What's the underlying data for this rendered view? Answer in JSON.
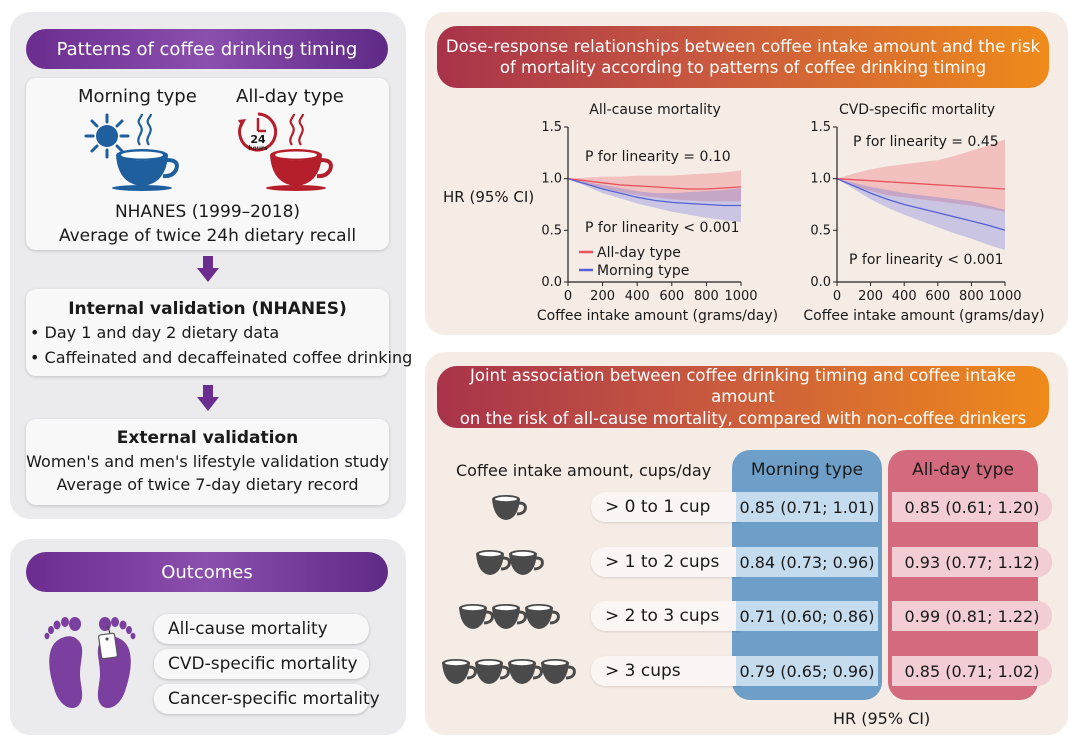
{
  "left": {
    "header": "Patterns of coffee drinking timing",
    "morning_label": "Morning type",
    "allday_label": "All-day type",
    "clock_number": "24",
    "clock_word": "hours",
    "nhanes_line1": "NHANES (1999–2018)",
    "nhanes_line2": "Average of twice 24h dietary recall",
    "internal_title": "Internal validation (NHANES)",
    "internal_items": [
      "Day 1 and day 2 dietary data",
      "Caffeinated and decaffeinated coffee drinking"
    ],
    "external_title": "External validation",
    "external_line1": "Women's and men's lifestyle validation study",
    "external_line2": "Average of twice 7-day dietary record"
  },
  "outcomes": {
    "header": "Outcomes",
    "items": [
      "All-cause mortality",
      "CVD-specific mortality",
      "Cancer-specific mortality"
    ]
  },
  "dose": {
    "header_line1": "Dose-response relationships between coffee intake amount and the risk",
    "header_line2": "of mortality according to patterns of coffee drinking timing",
    "ylabel": "HR (95% CI)"
  },
  "chart_data": [
    {
      "type": "line",
      "title": "All-cause mortality",
      "xlabel": "Coffee intake amount (grams/day)",
      "ylabel": "HR (95% CI)",
      "xlim": [
        0,
        1000
      ],
      "ylim": [
        0,
        1.5
      ],
      "x_ticks": [
        0,
        200,
        400,
        600,
        800,
        1000
      ],
      "y_ticks": [
        0.0,
        0.5,
        1.0,
        1.5
      ],
      "annotations": [
        "P for linearity = 0.10",
        "P for linearity < 0.001"
      ],
      "legend": "lower-left",
      "series": [
        {
          "name": "All-day type",
          "color": "#e8525b",
          "x": [
            0,
            100,
            200,
            300,
            400,
            500,
            600,
            700,
            800,
            900,
            1000
          ],
          "values": [
            1.0,
            0.98,
            0.96,
            0.94,
            0.93,
            0.92,
            0.91,
            0.9,
            0.9,
            0.91,
            0.92
          ],
          "lower": [
            1.0,
            0.95,
            0.91,
            0.87,
            0.84,
            0.82,
            0.8,
            0.79,
            0.78,
            0.78,
            0.78
          ],
          "upper": [
            1.0,
            1.01,
            1.02,
            1.02,
            1.03,
            1.03,
            1.03,
            1.04,
            1.05,
            1.06,
            1.08
          ]
        },
        {
          "name": "Morning type",
          "color": "#5560d8",
          "x": [
            0,
            100,
            200,
            300,
            400,
            500,
            600,
            700,
            800,
            900,
            1000
          ],
          "values": [
            1.0,
            0.95,
            0.9,
            0.86,
            0.82,
            0.79,
            0.77,
            0.76,
            0.75,
            0.74,
            0.74
          ],
          "lower": [
            1.0,
            0.93,
            0.86,
            0.81,
            0.76,
            0.72,
            0.68,
            0.65,
            0.62,
            0.6,
            0.58
          ],
          "upper": [
            1.0,
            0.97,
            0.94,
            0.91,
            0.88,
            0.86,
            0.86,
            0.87,
            0.88,
            0.89,
            0.91
          ]
        }
      ]
    },
    {
      "type": "line",
      "title": "CVD-specific mortality",
      "xlabel": "Coffee intake amount (grams/day)",
      "ylabel": "",
      "xlim": [
        0,
        1000
      ],
      "ylim": [
        0,
        1.5
      ],
      "x_ticks": [
        0,
        200,
        400,
        600,
        800,
        1000
      ],
      "y_ticks": [
        0.0,
        0.5,
        1.0,
        1.5
      ],
      "annotations": [
        "P for linearity = 0.45",
        "P for linearity < 0.001"
      ],
      "series": [
        {
          "name": "All-day type",
          "color": "#e8525b",
          "x": [
            0,
            100,
            200,
            300,
            400,
            500,
            600,
            700,
            800,
            900,
            1000
          ],
          "values": [
            1.0,
            0.99,
            0.98,
            0.97,
            0.96,
            0.95,
            0.94,
            0.93,
            0.92,
            0.91,
            0.9
          ],
          "lower": [
            1.0,
            0.93,
            0.88,
            0.84,
            0.82,
            0.8,
            0.78,
            0.76,
            0.74,
            0.71,
            0.68
          ],
          "upper": [
            1.0,
            1.05,
            1.09,
            1.12,
            1.14,
            1.16,
            1.18,
            1.22,
            1.27,
            1.32,
            1.38
          ]
        },
        {
          "name": "Morning type",
          "color": "#5560d8",
          "x": [
            0,
            100,
            200,
            300,
            400,
            500,
            600,
            700,
            800,
            900,
            1000
          ],
          "values": [
            1.0,
            0.93,
            0.86,
            0.8,
            0.75,
            0.71,
            0.67,
            0.63,
            0.59,
            0.55,
            0.5
          ],
          "lower": [
            1.0,
            0.9,
            0.8,
            0.72,
            0.65,
            0.59,
            0.53,
            0.47,
            0.42,
            0.36,
            0.31
          ],
          "upper": [
            1.0,
            0.96,
            0.92,
            0.89,
            0.86,
            0.84,
            0.82,
            0.8,
            0.78,
            0.74,
            0.7
          ]
        }
      ]
    }
  ],
  "joint": {
    "header_line1": "Joint association between coffee drinking timing and coffee intake amount",
    "header_line2": "on the risk of all-cause mortality, compared with non-coffee drinkers",
    "col_label": "Coffee intake amount, cups/day",
    "morning_header": "Morning type",
    "allday_header": "All-day type",
    "footer": "HR (95% CI)",
    "rows": [
      {
        "label": "> 0 to 1 cup",
        "cups": 1,
        "morning": "0.85 (0.71; 1.01)",
        "allday": "0.85 (0.61; 1.20)"
      },
      {
        "label": "> 1 to 2 cups",
        "cups": 2,
        "morning": "0.84 (0.73; 0.96)",
        "allday": "0.93 (0.77; 1.12)"
      },
      {
        "label": "> 2 to 3 cups",
        "cups": 3,
        "morning": "0.71 (0.60; 0.86)",
        "allday": "0.99 (0.81; 1.22)"
      },
      {
        "label": "> 3 cups",
        "cups": 4,
        "morning": "0.79 (0.65; 0.96)",
        "allday": "0.85 (0.71; 1.02)"
      }
    ]
  },
  "colors": {
    "purple": "#6b2d8f",
    "orange": "#ef8a1a",
    "blue_cup": "#1f5f9e",
    "red_cup": "#b51f2b",
    "morning_col": "#6e9fc8",
    "allday_col": "#d46a7d",
    "cup_gray": "#4a4a4a",
    "feet": "#7b3fa0"
  }
}
